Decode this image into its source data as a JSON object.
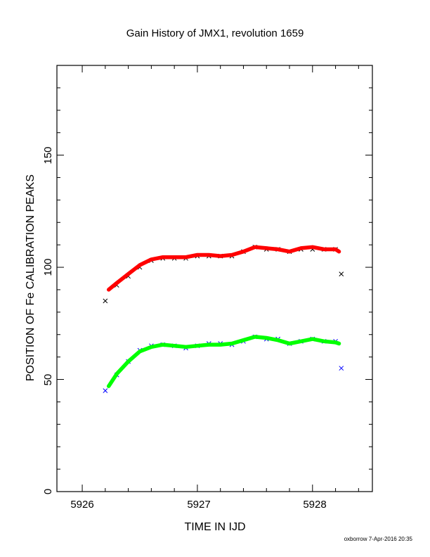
{
  "chart_data": {
    "type": "scatter",
    "title": "Gain History of JMX1, revolution 1659",
    "xlabel": "TIME IN IJD",
    "ylabel": "POSITION OF Fe CALIBRATION PEAKS",
    "xlim": [
      5925.78,
      5928.52
    ],
    "ylim": [
      0,
      190
    ],
    "x_ticks": [
      "5926",
      "5927",
      "5928"
    ],
    "y_ticks": [
      "0",
      "50",
      "100",
      "150"
    ],
    "footer": "oxborrow  7-Apr-2016 20:35",
    "colors": {
      "upper_raw": "#000000",
      "upper_fit": "#ff0000",
      "lower_raw": "#0000ff",
      "lower_fit": "#00ff00"
    },
    "series": [
      {
        "marker": "x",
        "color": "#000000",
        "x": [
          5926.2,
          5926.3,
          5926.4,
          5926.5,
          5926.6,
          5926.7,
          5926.8,
          5926.9,
          5927.0,
          5927.1,
          5927.2,
          5927.3,
          5927.4,
          5927.5,
          5927.6,
          5927.7,
          5927.8,
          5927.9,
          5928.0,
          5928.1,
          5928.2,
          5928.25
        ],
        "values": [
          85,
          92,
          96,
          100,
          103,
          104,
          104,
          104,
          105,
          105,
          105,
          105,
          107,
          109,
          108,
          108,
          107,
          108,
          108,
          108,
          108,
          97
        ]
      },
      {
        "marker": "line",
        "color": "#ff0000",
        "x": [
          5926.23,
          5926.3,
          5926.4,
          5926.5,
          5926.6,
          5926.7,
          5926.8,
          5926.9,
          5927.0,
          5927.1,
          5927.2,
          5927.3,
          5927.4,
          5927.5,
          5927.6,
          5927.7,
          5927.8,
          5927.9,
          5928.0,
          5928.1,
          5928.2,
          5928.23
        ],
        "values": [
          90,
          93,
          97,
          101,
          103.5,
          104.5,
          104.5,
          104.5,
          105.5,
          105.5,
          105,
          105.5,
          107,
          109,
          108.5,
          108,
          107,
          108.5,
          109,
          108,
          108,
          107
        ]
      },
      {
        "marker": "x",
        "color": "#0000ff",
        "x": [
          5926.2,
          5926.3,
          5926.4,
          5926.5,
          5926.6,
          5926.7,
          5926.8,
          5926.9,
          5927.0,
          5927.1,
          5927.2,
          5927.3,
          5927.4,
          5927.5,
          5927.6,
          5927.7,
          5927.8,
          5927.9,
          5928.0,
          5928.1,
          5928.2,
          5928.25
        ],
        "values": [
          45,
          52,
          58,
          63,
          65,
          65.5,
          65,
          64,
          65,
          66,
          66,
          65.5,
          67,
          69,
          68,
          68,
          66,
          67,
          68,
          67,
          67,
          55
        ]
      },
      {
        "marker": "line",
        "color": "#00ff00",
        "x": [
          5926.23,
          5926.3,
          5926.4,
          5926.5,
          5926.6,
          5926.7,
          5926.8,
          5926.9,
          5927.0,
          5927.1,
          5927.2,
          5927.3,
          5927.4,
          5927.5,
          5927.6,
          5927.7,
          5927.8,
          5927.9,
          5928.0,
          5928.1,
          5928.2,
          5928.23
        ],
        "values": [
          47,
          52.5,
          58,
          62.5,
          64.5,
          65.5,
          65,
          64.5,
          65,
          65.5,
          65.5,
          66,
          67.5,
          69,
          68.5,
          67.5,
          66,
          67,
          68,
          67,
          66.5,
          66
        ]
      }
    ]
  }
}
